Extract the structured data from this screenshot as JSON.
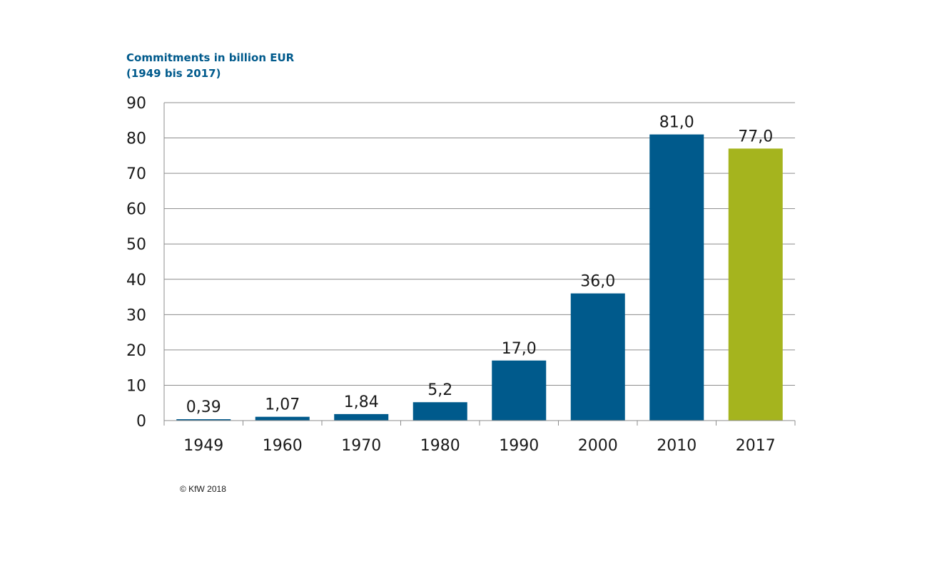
{
  "chart_data": {
    "type": "bar",
    "title": "Commitments in billion EUR",
    "subtitle": "(1949 bis 2017)",
    "categories": [
      "1949",
      "1960",
      "1970",
      "1980",
      "1990",
      "2000",
      "2010",
      "2017"
    ],
    "values": [
      0.39,
      1.07,
      1.84,
      5.2,
      17.0,
      36.0,
      81.0,
      77.0
    ],
    "data_labels": [
      "0,39",
      "1,07",
      "1,84",
      "5,2",
      "17,0",
      "36,0",
      "81,0",
      "77,0"
    ],
    "bar_colors": [
      "#005a8c",
      "#005a8c",
      "#005a8c",
      "#005a8c",
      "#005a8c",
      "#005a8c",
      "#005a8c",
      "#a5b41e"
    ],
    "ylim": [
      0,
      90
    ],
    "yticks": [
      0,
      10,
      20,
      30,
      40,
      50,
      60,
      70,
      80,
      90
    ],
    "xlabel": "",
    "ylabel": "",
    "grid": true,
    "legend": "none"
  },
  "footer": {
    "copyright": "© KfW 2018"
  },
  "colors": {
    "title": "#005a8c",
    "bar_primary": "#005a8c",
    "bar_highlight": "#a5b41e",
    "grid": "#8c8c8c"
  }
}
